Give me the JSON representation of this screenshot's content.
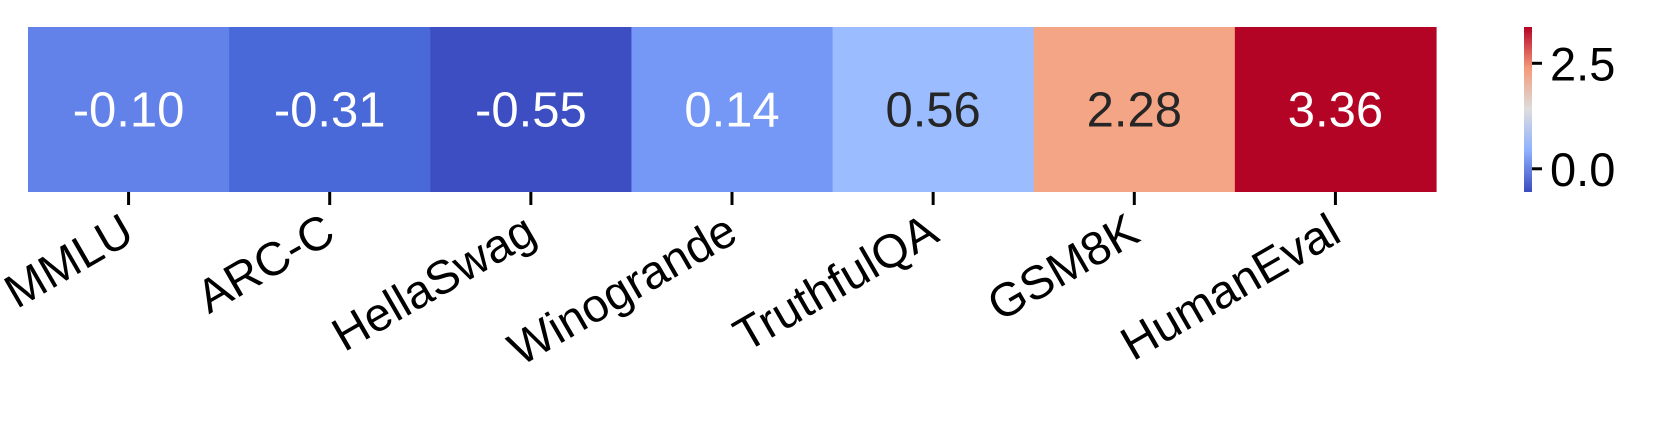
{
  "chart_data": {
    "type": "heatmap",
    "title": "",
    "xlabel": "",
    "ylabel": "",
    "grid": false,
    "legend": "colorbar-right",
    "categories": [
      "MMLU",
      "ARC-C",
      "HellaSwag",
      "Winogrande",
      "TruthfulQA",
      "GSM8K",
      "HumanEval"
    ],
    "values": [
      -0.1,
      -0.31,
      -0.55,
      0.14,
      0.56,
      2.28,
      3.36
    ],
    "value_labels": [
      "-0.10",
      "-0.31",
      "-0.55",
      "0.14",
      "0.56",
      "2.28",
      "3.36"
    ],
    "colormap": "coolwarm",
    "color_range": [
      -0.55,
      3.36
    ],
    "cell_colors": [
      "#6282ea",
      "#4a69d9",
      "#3c4ec2",
      "#7597f6",
      "#9bbcff",
      "#f4a586",
      "#b40426"
    ],
    "label_colors": [
      "#ffffff",
      "#ffffff",
      "#ffffff",
      "#ffffff",
      "#262626",
      "#262626",
      "#ffffff"
    ],
    "colorbar": {
      "ticks": [
        0.0,
        2.5
      ],
      "tick_labels": [
        "0.0",
        "2.5"
      ]
    }
  }
}
